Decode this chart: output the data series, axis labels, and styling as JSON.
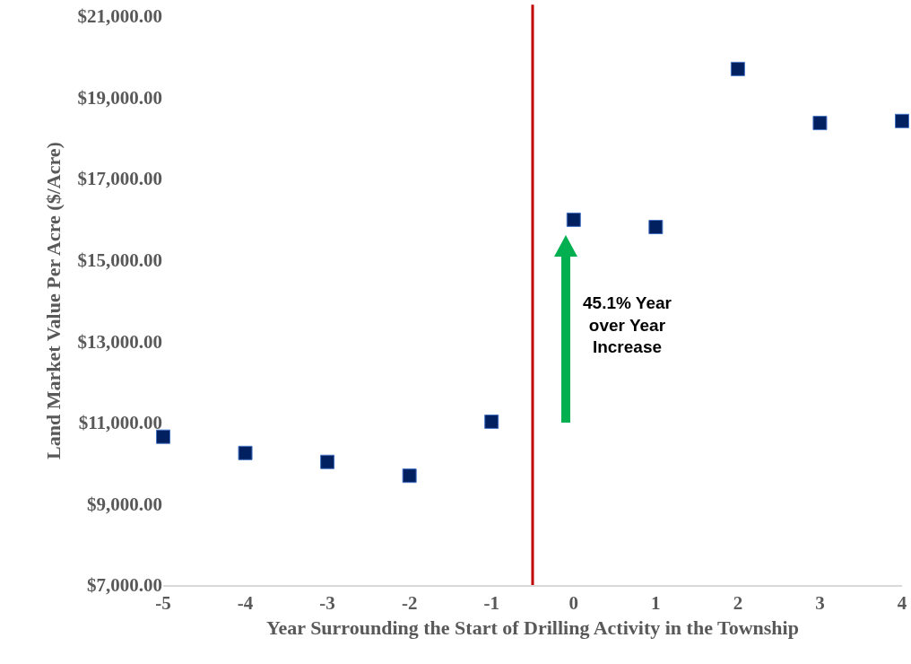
{
  "chart_data": {
    "type": "scatter",
    "xlabel": "Year Surrounding the Start of Drilling Activity in the Township",
    "ylabel": "Land Market Value Per Acre ($/Acre)",
    "x": [
      -5,
      -4,
      -3,
      -2,
      -1,
      0,
      1,
      2,
      3,
      4
    ],
    "series": [
      {
        "color": "#002060",
        "values": [
          10650,
          10250,
          10030,
          9690,
          11020,
          15990,
          15810,
          19700,
          18370,
          18420
        ]
      }
    ],
    "marker": "square",
    "xlim": [
      -5,
      4
    ],
    "xticks": [
      -5,
      -4,
      -3,
      -2,
      -1,
      0,
      1,
      2,
      3,
      4
    ],
    "ylim": [
      7000,
      21000
    ],
    "yticks": [
      {
        "value": 7000,
        "label": "$7,000.00"
      },
      {
        "value": 9000,
        "label": "$9,000.00"
      },
      {
        "value": 11000,
        "label": "$11,000.00"
      },
      {
        "value": 13000,
        "label": "$13,000.00"
      },
      {
        "value": 15000,
        "label": "$15,000.00"
      },
      {
        "value": 17000,
        "label": "$17,000.00"
      },
      {
        "value": 19000,
        "label": "$19,000.00"
      },
      {
        "value": 21000,
        "label": "$21,000.00"
      }
    ],
    "ref_lines": [
      {
        "axis": "x",
        "value": -0.5,
        "color": "#c00000"
      }
    ],
    "annotations": [
      "45.1% Year\nover Year\nIncrease"
    ],
    "grid": false,
    "legend": false
  }
}
